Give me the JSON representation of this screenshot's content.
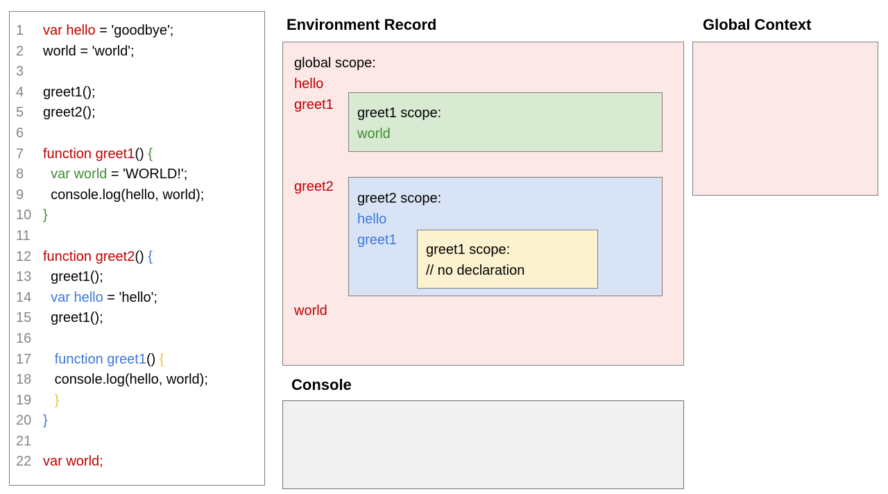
{
  "titles": {
    "environment_record": "Environment Record",
    "global_context": "Global Context",
    "console": "Console"
  },
  "colors": {
    "red": "#c00000",
    "green": "#418c32",
    "blue": "#3c78d8",
    "yellow": "#f1c232",
    "gray": "#858585",
    "pink_fill": "#fce8e7",
    "green_fill": "#d9ead3",
    "blue_fill": "#d8e3f6",
    "yellow_fill": "#fcf2cf",
    "console_fill": "#f1f1f1"
  },
  "code_panel": {
    "lines": [
      {
        "n": "1",
        "tokens": [
          {
            "t": "var hello",
            "c": "red"
          },
          {
            "t": " = 'goodbye';",
            "c": "black"
          }
        ]
      },
      {
        "n": "2",
        "tokens": [
          {
            "t": "world = 'world';",
            "c": "black"
          }
        ]
      },
      {
        "n": "3",
        "tokens": []
      },
      {
        "n": "4",
        "tokens": [
          {
            "t": "greet1();",
            "c": "black"
          }
        ]
      },
      {
        "n": "5",
        "tokens": [
          {
            "t": "greet2();",
            "c": "black"
          }
        ]
      },
      {
        "n": "6",
        "tokens": []
      },
      {
        "n": "7",
        "tokens": [
          {
            "t": "function greet1",
            "c": "red"
          },
          {
            "t": "() ",
            "c": "black"
          },
          {
            "t": "{",
            "c": "green"
          }
        ]
      },
      {
        "n": "8",
        "tokens": [
          {
            "t": "  ",
            "c": "black"
          },
          {
            "t": "var world",
            "c": "green"
          },
          {
            "t": " = 'WORLD!';",
            "c": "black"
          }
        ]
      },
      {
        "n": "9",
        "tokens": [
          {
            "t": "  console.log(hello, world);",
            "c": "black"
          }
        ]
      },
      {
        "n": "10",
        "tokens": [
          {
            "t": "}",
            "c": "green"
          }
        ]
      },
      {
        "n": "11",
        "tokens": []
      },
      {
        "n": "12",
        "tokens": [
          {
            "t": "function greet2",
            "c": "red"
          },
          {
            "t": "() ",
            "c": "black"
          },
          {
            "t": "{",
            "c": "blue"
          }
        ]
      },
      {
        "n": "13",
        "tokens": [
          {
            "t": "  greet1();",
            "c": "black"
          }
        ]
      },
      {
        "n": "14",
        "tokens": [
          {
            "t": "  ",
            "c": "black"
          },
          {
            "t": "var hello",
            "c": "blue"
          },
          {
            "t": " = 'hello';",
            "c": "black"
          }
        ]
      },
      {
        "n": "15",
        "tokens": [
          {
            "t": "  greet1();",
            "c": "black"
          }
        ]
      },
      {
        "n": "16",
        "tokens": []
      },
      {
        "n": "17",
        "tokens": [
          {
            "t": "   ",
            "c": "black"
          },
          {
            "t": "function greet1",
            "c": "blue"
          },
          {
            "t": "() ",
            "c": "black"
          },
          {
            "t": "{",
            "c": "yellow"
          }
        ]
      },
      {
        "n": "18",
        "tokens": [
          {
            "t": "   console.log(hello, world);",
            "c": "black"
          }
        ]
      },
      {
        "n": "19",
        "tokens": [
          {
            "t": "   ",
            "c": "black"
          },
          {
            "t": "}",
            "c": "yellow"
          }
        ]
      },
      {
        "n": "20",
        "tokens": [
          {
            "t": "}",
            "c": "blue"
          }
        ]
      },
      {
        "n": "21",
        "tokens": []
      },
      {
        "n": "22",
        "tokens": [
          {
            "t": "var world;",
            "c": "red"
          }
        ]
      }
    ]
  },
  "environment_record": {
    "global_scope_label": "global scope:",
    "global_items": {
      "hello": "hello",
      "greet1": "greet1",
      "greet2": "greet2",
      "world": "world"
    },
    "greet1_scope": {
      "label": "greet1 scope:",
      "item": "world"
    },
    "greet2_scope": {
      "label": "greet2 scope:",
      "item1": "hello",
      "item2": "greet1"
    },
    "inner_greet1_scope": {
      "label": "greet1 scope:",
      "comment": "// no declaration"
    }
  },
  "global_context": {
    "content": ""
  },
  "console": {
    "content": ""
  }
}
